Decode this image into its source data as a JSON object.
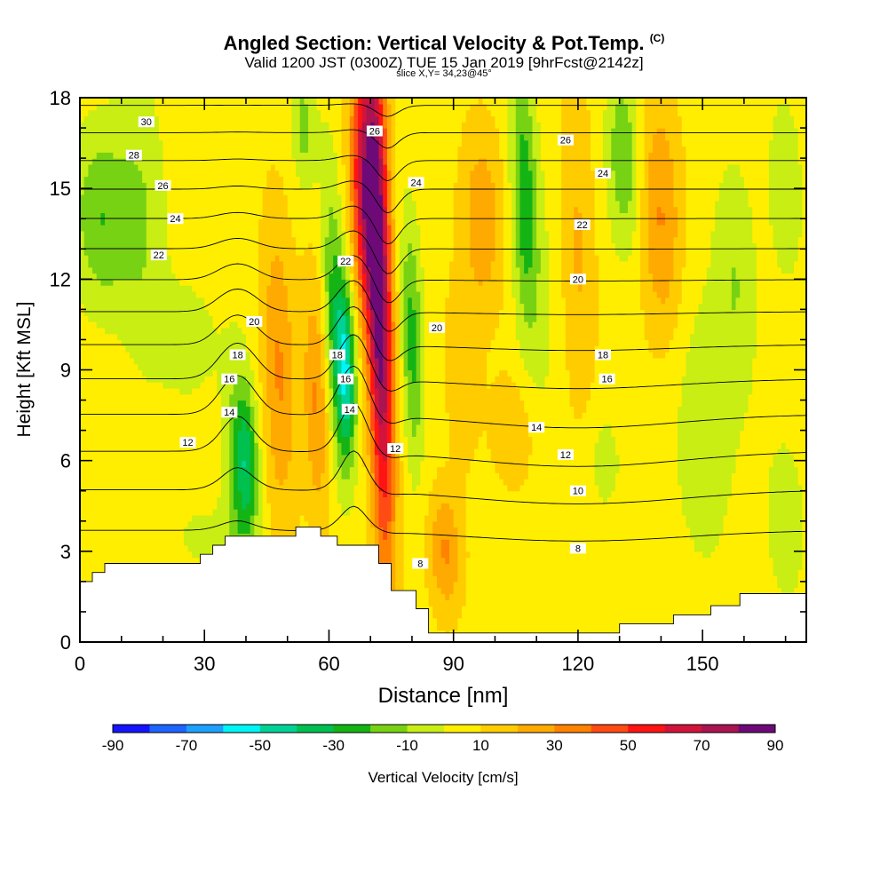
{
  "header": {
    "title": "Angled Section: Vertical Velocity & Pot.Temp.",
    "title_mark": "(C)",
    "valid_line": "Valid 1200 JST (0300Z) TUE 15 Jan 2019 [9hrFcst@2142z]",
    "slice_line": "slice X,Y= 34,23@45°"
  },
  "chart_data": {
    "type": "heatmap",
    "xlabel": "Distance [nm]",
    "ylabel": "Height [Kft MSL]",
    "xlim": [
      0,
      175
    ],
    "ylim": [
      0,
      18
    ],
    "x_ticks": [
      "0",
      "30",
      "60",
      "90",
      "120",
      "150"
    ],
    "y_ticks": [
      "0",
      "3",
      "6",
      "9",
      "12",
      "15",
      "18"
    ],
    "colorbar": {
      "label": "Vertical Velocity [cm/s]",
      "tick_labels": [
        "-90",
        "-70",
        "-50",
        "-30",
        "-10",
        "10",
        "30",
        "50",
        "70",
        "90"
      ],
      "levels": [
        -90,
        -80,
        -70,
        -60,
        -50,
        -40,
        -30,
        -20,
        -10,
        0,
        10,
        20,
        30,
        40,
        50,
        60,
        70,
        80,
        90
      ],
      "colors": [
        "#1414ff",
        "#1e64ff",
        "#1ea0ff",
        "#00f5f5",
        "#00d296",
        "#00c050",
        "#14b414",
        "#78d214",
        "#c8ee14",
        "#ffee00",
        "#ffcc00",
        "#ffaa00",
        "#ff8200",
        "#ff4b14",
        "#ff1414",
        "#d2143c",
        "#aa1450",
        "#6e0a78"
      ]
    },
    "theta_contours": {
      "levels": [
        8,
        10,
        12,
        14,
        16,
        18,
        20,
        22,
        24,
        26,
        28,
        30
      ],
      "labels": [
        {
          "text": "30",
          "x": 16,
          "y": 17.2
        },
        {
          "text": "28",
          "x": 13,
          "y": 16.1
        },
        {
          "text": "26",
          "x": 20,
          "y": 15.1
        },
        {
          "text": "24",
          "x": 23,
          "y": 14.0
        },
        {
          "text": "22",
          "x": 19,
          "y": 12.8
        },
        {
          "text": "20",
          "x": 42,
          "y": 10.6
        },
        {
          "text": "18",
          "x": 38,
          "y": 9.5
        },
        {
          "text": "16",
          "x": 36,
          "y": 8.7
        },
        {
          "text": "14",
          "x": 36,
          "y": 7.6
        },
        {
          "text": "12",
          "x": 26,
          "y": 6.6
        },
        {
          "text": "22",
          "x": 64,
          "y": 12.6
        },
        {
          "text": "18",
          "x": 62,
          "y": 9.5
        },
        {
          "text": "16",
          "x": 64,
          "y": 8.7
        },
        {
          "text": "14",
          "x": 65,
          "y": 7.7
        },
        {
          "text": "26",
          "x": 71,
          "y": 16.9
        },
        {
          "text": "24",
          "x": 81,
          "y": 15.2
        },
        {
          "text": "12",
          "x": 76,
          "y": 6.4
        },
        {
          "text": "8",
          "x": 82,
          "y": 2.6
        },
        {
          "text": "20",
          "x": 86,
          "y": 10.4
        },
        {
          "text": "14",
          "x": 110,
          "y": 7.1
        },
        {
          "text": "12",
          "x": 117,
          "y": 6.2
        },
        {
          "text": "10",
          "x": 120,
          "y": 5.0
        },
        {
          "text": "8",
          "x": 120,
          "y": 3.1
        },
        {
          "text": "18",
          "x": 126,
          "y": 9.5
        },
        {
          "text": "16",
          "x": 127,
          "y": 8.7
        },
        {
          "text": "20",
          "x": 120,
          "y": 12.0
        },
        {
          "text": "22",
          "x": 121,
          "y": 13.8
        },
        {
          "text": "24",
          "x": 126,
          "y": 15.5
        },
        {
          "text": "26",
          "x": 117,
          "y": 16.6
        }
      ]
    },
    "terrain": [
      [
        0,
        2.0
      ],
      [
        3,
        2.0
      ],
      [
        3,
        2.3
      ],
      [
        6,
        2.3
      ],
      [
        6,
        2.6
      ],
      [
        29,
        2.6
      ],
      [
        29,
        2.9
      ],
      [
        32,
        2.9
      ],
      [
        32,
        3.2
      ],
      [
        35,
        3.2
      ],
      [
        35,
        3.5
      ],
      [
        52,
        3.5
      ],
      [
        52,
        3.8
      ],
      [
        58,
        3.8
      ],
      [
        58,
        3.5
      ],
      [
        62,
        3.5
      ],
      [
        62,
        3.2
      ],
      [
        72,
        3.2
      ],
      [
        72,
        2.6
      ],
      [
        75,
        2.6
      ],
      [
        75,
        1.7
      ],
      [
        81,
        1.7
      ],
      [
        81,
        1.1
      ],
      [
        84,
        1.1
      ],
      [
        84,
        0.3
      ],
      [
        130,
        0.3
      ],
      [
        130,
        0.6
      ],
      [
        143,
        0.6
      ],
      [
        143,
        0.9
      ],
      [
        152,
        0.9
      ],
      [
        152,
        1.2
      ],
      [
        159,
        1.2
      ],
      [
        159,
        1.6
      ],
      [
        175,
        1.6
      ]
    ],
    "contour_hint": "isentropes of potential temperature"
  }
}
